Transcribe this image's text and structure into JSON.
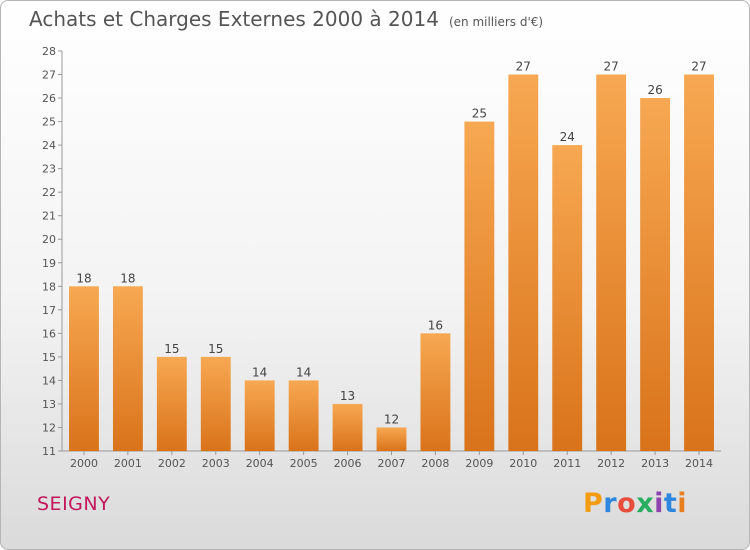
{
  "header": {
    "title": "Achats et Charges Externes 2000 à 2014",
    "subtitle": "(en milliers d'€)"
  },
  "footer": {
    "commune": "SEIGNY",
    "logo_letters": [
      "P",
      "r",
      "o",
      "x",
      "i",
      "t",
      "i"
    ],
    "logo_colors": [
      "#f39c12",
      "#2e86de",
      "#e74c3c",
      "#27ae60",
      "#8e44ad",
      "#2e86de",
      "#e67e22"
    ]
  },
  "chart_data": {
    "type": "bar",
    "title": "Achats et Charges Externes 2000 à 2014",
    "subtitle": "(en milliers d'€)",
    "xlabel": "",
    "ylabel": "",
    "categories": [
      "2000",
      "2001",
      "2002",
      "2003",
      "2004",
      "2005",
      "2006",
      "2007",
      "2008",
      "2009",
      "2010",
      "2011",
      "2012",
      "2013",
      "2014"
    ],
    "values": [
      18,
      18,
      15,
      15,
      14,
      14,
      13,
      12,
      16,
      25,
      27,
      24,
      27,
      26,
      27
    ],
    "ylim": [
      11,
      28
    ],
    "yticks": [
      11,
      12,
      13,
      14,
      15,
      16,
      17,
      18,
      19,
      20,
      21,
      22,
      23,
      24,
      25,
      26,
      27,
      28
    ],
    "grid": false,
    "bar_color_light": "#f7a852",
    "bar_color_dark": "#d9731a"
  }
}
